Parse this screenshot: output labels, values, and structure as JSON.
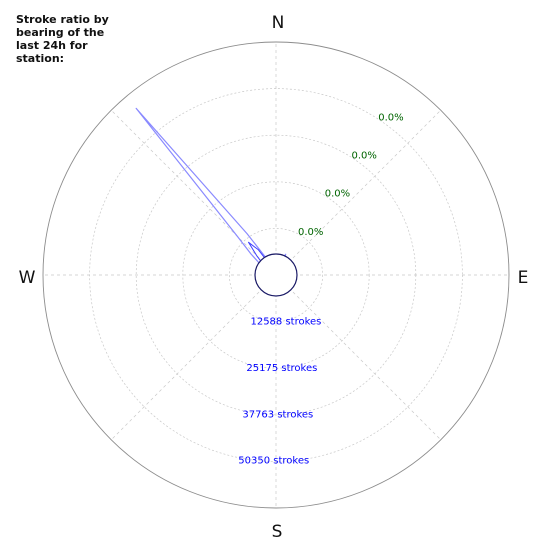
{
  "chart_data": {
    "type": "polar-line",
    "title": "Stroke ratio by bearing of the last 24h for station:",
    "direction_labels": [
      "N",
      "E",
      "S",
      "W"
    ],
    "ratio_ring_labels": [
      "0.0%",
      "0.0%",
      "0.0%",
      "0.0%"
    ],
    "stroke_ring_labels": [
      "12588 strokes",
      "25175 strokes",
      "37763 strokes",
      "50350 strokes"
    ],
    "r_max_strokes": 60000,
    "series": [
      {
        "color": "#8a8aff",
        "bearings_deg": [
          0,
          5,
          10,
          15,
          20,
          25,
          30,
          35,
          40,
          45,
          50,
          60,
          70,
          80,
          90,
          100,
          110,
          120,
          130,
          140,
          150,
          160,
          170,
          180,
          190,
          200,
          210,
          220,
          230,
          240,
          250,
          260,
          270,
          280,
          290,
          300,
          305,
          310,
          315,
          320,
          325,
          330,
          335,
          340,
          345,
          350,
          355
        ],
        "strokes": [
          2000,
          2200,
          3200,
          4700,
          4400,
          5900,
          3700,
          3000,
          2400,
          2100,
          2000,
          2000,
          2000,
          2000,
          2000,
          2000,
          2000,
          2000,
          2000,
          2000,
          2000,
          2000,
          2000,
          2000,
          2000,
          2000,
          2000,
          2000,
          2000,
          2000,
          2000,
          2000,
          2000,
          2000,
          2300,
          3000,
          5200,
          8400,
          14000,
          56000,
          13000,
          5000,
          2600,
          2200,
          2000,
          2000,
          2000
        ]
      },
      {
        "color": "#3f3fff",
        "bearings_deg": [
          0,
          15,
          25,
          35,
          45,
          90,
          180,
          270,
          300,
          315,
          320,
          325,
          330,
          335,
          345
        ],
        "strokes": [
          1900,
          3000,
          3600,
          2600,
          2000,
          1900,
          1900,
          1900,
          2500,
          7000,
          11000,
          8000,
          3000,
          2200,
          1900
        ]
      }
    ],
    "grid": true
  }
}
